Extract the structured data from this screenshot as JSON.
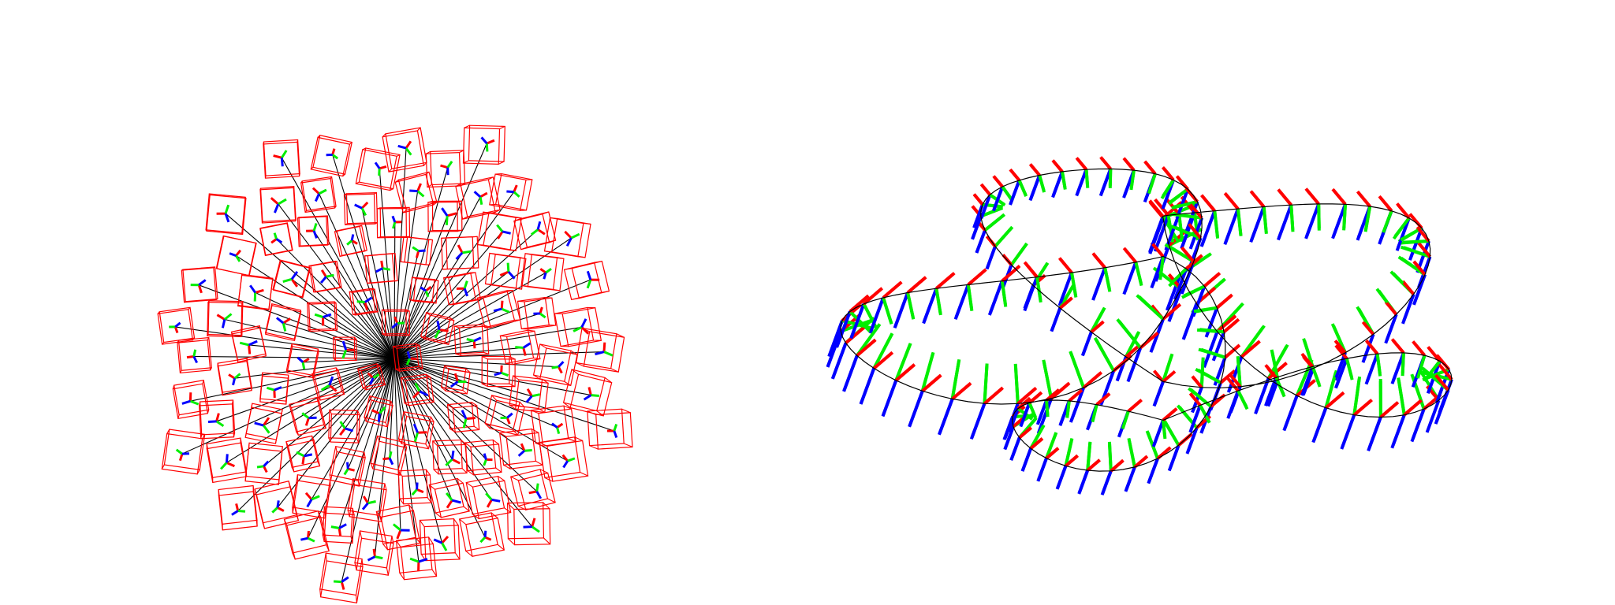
{
  "figure": {
    "panels": [
      {
        "kind": "radial-camera-frustums",
        "view": "top-down",
        "camera_count": 100,
        "ray_color": "#000000",
        "frustum_color": "#ff0000"
      },
      {
        "kind": "camera-trajectory-axes",
        "view": "perspective",
        "path_color": "#000000"
      }
    ],
    "axis_colors": {
      "x": "#ff0000",
      "y": "#00ee00",
      "z": "#0000ff"
    }
  }
}
